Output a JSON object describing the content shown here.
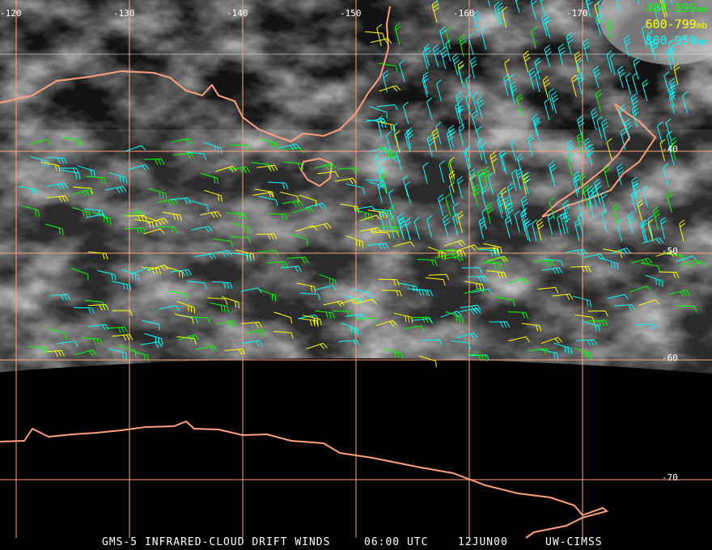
{
  "map": {
    "longitude_labels": [
      "-120",
      "-130",
      "-140",
      "-150",
      "-160",
      "-170"
    ],
    "latitude_labels": [
      "-40",
      "-50",
      "-60",
      "-70"
    ],
    "grid_color": "#ffa07a",
    "coastline_color": "#ffa07a"
  },
  "legend": [
    {
      "label": "400-599",
      "unit": "mb",
      "color": "#00ff00"
    },
    {
      "label": "600-799",
      "unit": "mb",
      "color": "#ffff00"
    },
    {
      "label": "800-950",
      "unit": "mb",
      "color": "#00ffff"
    }
  ],
  "footer": {
    "product": "GMS-5 INFRARED-CLOUD DRIFT WINDS",
    "time": "06:00 UTC",
    "date": "12JUN00",
    "source": "UW-CIMSS"
  }
}
